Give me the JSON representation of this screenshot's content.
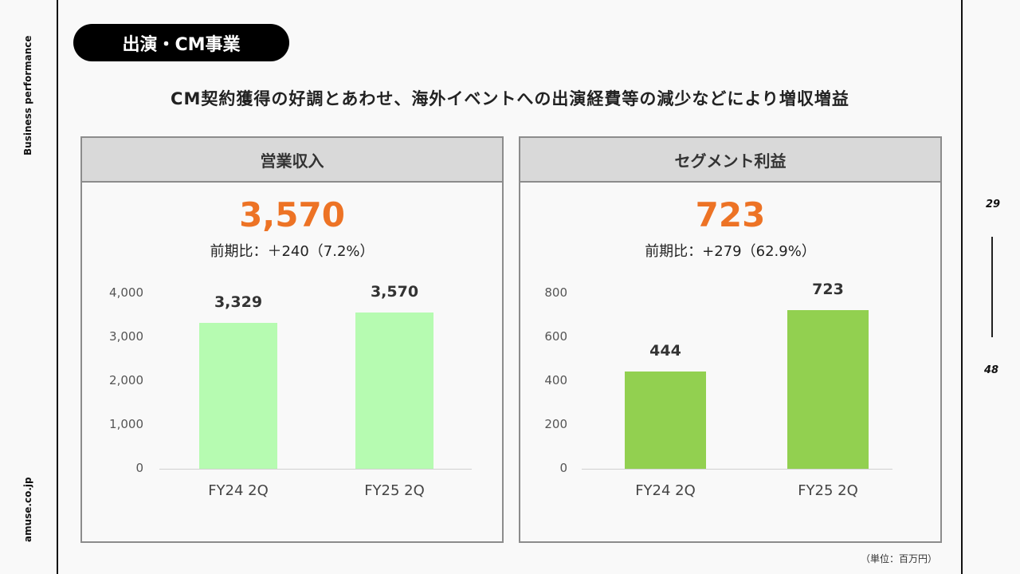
{
  "sidebar": {
    "section": "Business performance",
    "site": "amuse.co.jp"
  },
  "title": "出演・CM事業",
  "headline": "CM契約獲得の好調とあわせ、海外イベントへの出演経費等の減少などにより増収増益",
  "pages": {
    "current": "29",
    "total": "48"
  },
  "unit": "（単位：百万円）",
  "panels": [
    {
      "header": "営業収入",
      "value": "3,570",
      "comparison": "前期比：＋240（7.2%）"
    },
    {
      "header": "セグメント利益",
      "value": "723",
      "comparison": "前期比：+279（62.9%）"
    }
  ],
  "chart_data": [
    {
      "type": "bar",
      "title": "営業収入",
      "categories": [
        "FY24 2Q",
        "FY25 2Q"
      ],
      "values": [
        3329,
        3570
      ],
      "value_labels": [
        "3,329",
        "3,570"
      ],
      "ylim": [
        0,
        4000
      ],
      "yticks": [
        0,
        1000,
        2000,
        3000,
        4000
      ],
      "ytick_labels": [
        "0",
        "1,000",
        "2,000",
        "3,000",
        "4,000"
      ],
      "color": "#b6fbb1",
      "grid": false
    },
    {
      "type": "bar",
      "title": "セグメント利益",
      "categories": [
        "FY24 2Q",
        "FY25 2Q"
      ],
      "values": [
        444,
        723
      ],
      "value_labels": [
        "444",
        "723"
      ],
      "ylim": [
        0,
        800
      ],
      "yticks": [
        0,
        200,
        400,
        600,
        800
      ],
      "ytick_labels": [
        "0",
        "200",
        "400",
        "600",
        "800"
      ],
      "color": "#92d050",
      "grid": false
    }
  ]
}
